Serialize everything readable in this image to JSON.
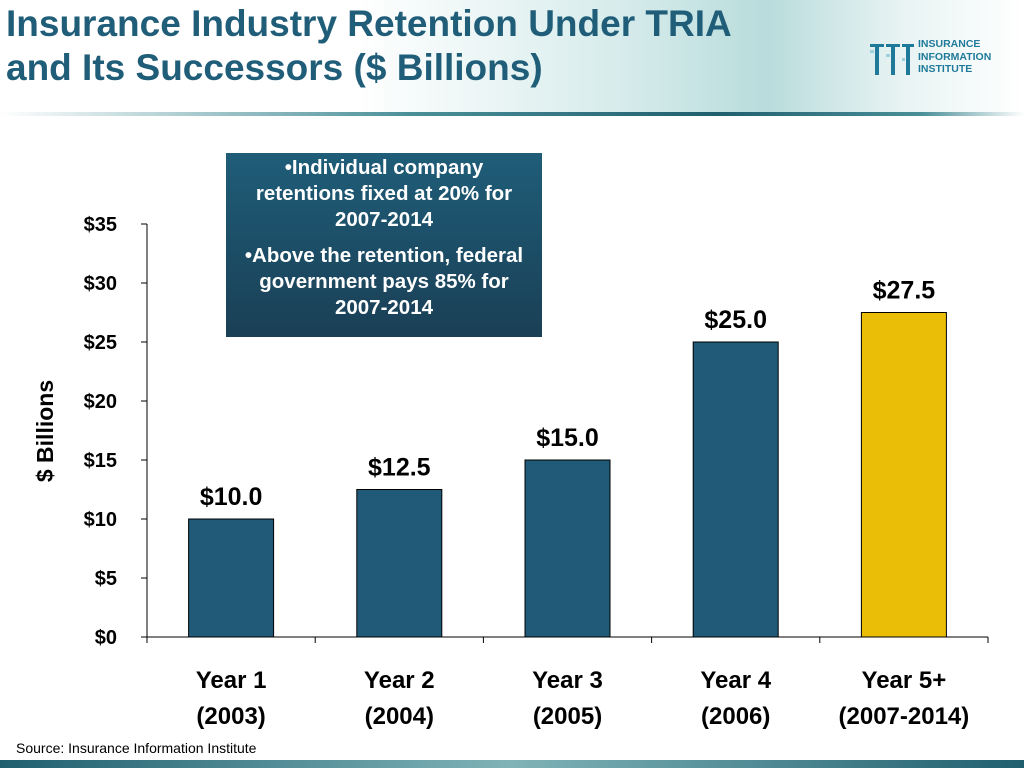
{
  "slide": {
    "title_line1": "Insurance Industry Retention Under TRIA",
    "title_line2": "and Its Successors ($ Billions)",
    "logo": {
      "line1": "INSURANCE",
      "line2": "INFORMATION",
      "line3": "INSTITUTE"
    },
    "callout": [
      "•Individual company retentions fixed at 20% for 2007-2014",
      "•Above the retention, federal government pays 85% for 2007-2014"
    ],
    "source": "Source: Insurance Information Institute"
  },
  "colors": {
    "title": "#1f5d78",
    "bar": "#215a78",
    "bar_highlight": "#eabd07",
    "callout_bg": "#1f5d78"
  },
  "chart_data": {
    "type": "bar",
    "categories": [
      [
        "Year 1",
        "(2003)"
      ],
      [
        "Year 2",
        "(2004)"
      ],
      [
        "Year 3",
        "(2005)"
      ],
      [
        "Year 4",
        "(2006)"
      ],
      [
        "Year 5+",
        "(2007-2014)"
      ]
    ],
    "values": [
      10.0,
      12.5,
      15.0,
      25.0,
      27.5
    ],
    "data_labels": [
      "$10.0",
      "$12.5",
      "$15.0",
      "$25.0",
      "$27.5"
    ],
    "highlight_index": 4,
    "ylabel": "$ Billions",
    "ylim": [
      0,
      35
    ],
    "yticks": [
      0,
      5,
      10,
      15,
      20,
      25,
      30,
      35
    ],
    "ytick_labels": [
      "$0",
      "$5",
      "$10",
      "$15",
      "$20",
      "$25",
      "$30",
      "$35"
    ],
    "grid": false,
    "legend": "none"
  }
}
